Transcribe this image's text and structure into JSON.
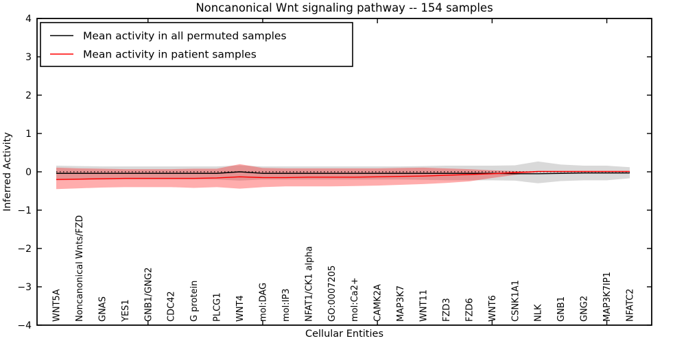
{
  "title": "Noncanonical Wnt signaling pathway -- 154 samples",
  "legend": {
    "items": [
      {
        "label": "Mean activity in all permuted samples",
        "color": "#000000"
      },
      {
        "label": "Mean activity in patient samples",
        "color": "#ff0000"
      }
    ]
  },
  "axes": {
    "ylabel": "Inferred Activity",
    "xlabel": "Cellular Entities",
    "ytick_labels": [
      "4",
      "3",
      "2",
      "1",
      "0",
      "−1",
      "−2",
      "−3",
      "−4"
    ],
    "ytick_values": [
      4,
      3,
      2,
      1,
      0,
      -1,
      -2,
      -3,
      -4
    ],
    "xtick_positions": [
      4,
      9,
      14,
      19,
      24
    ],
    "ylim": [
      -4,
      4
    ],
    "grid": false,
    "legend_position": "upper left"
  },
  "chart_data": {
    "type": "line",
    "title": "Noncanonical Wnt signaling pathway -- 154 samples",
    "xlabel": "Cellular Entities",
    "ylabel": "Inferred Activity",
    "ylim": [
      -4,
      4
    ],
    "categories": [
      "WNT5A",
      "Noncanonical Wnts/FZD",
      "GNAS",
      "YES1",
      "GNB1/GNG2",
      "CDC42",
      "G protein",
      "PLCG1",
      "WNT4",
      "mol:DAG",
      "mol:IP3",
      "NFAT1/CK1 alpha",
      "GO:0007205",
      "mol:Ca2+",
      "CAMK2A",
      "MAP3K7",
      "WNT11",
      "FZD3",
      "FZD6",
      "WNT6",
      "CSNK1A1",
      "NLK",
      "GNB1",
      "GNG2",
      "MAP3K7IP1",
      "NFATC2"
    ],
    "series": [
      {
        "name": "Mean activity in all permuted samples",
        "color": "#000000",
        "style": "solid",
        "width": 1.4,
        "values": [
          -0.04,
          -0.04,
          -0.04,
          -0.04,
          -0.04,
          -0.04,
          -0.04,
          -0.04,
          0.0,
          -0.04,
          -0.04,
          -0.04,
          -0.04,
          -0.04,
          -0.04,
          -0.04,
          -0.04,
          -0.04,
          -0.04,
          -0.04,
          -0.05,
          -0.05,
          -0.04,
          -0.03,
          -0.03,
          -0.03
        ]
      },
      {
        "name": "Median activity dotted reference",
        "color": "#000000",
        "style": "dotted",
        "width": 1.2,
        "values": [
          0.0,
          0.0,
          0.0,
          0.0,
          0.0,
          0.0,
          0.0,
          0.0,
          0.0,
          0.0,
          0.0,
          0.0,
          0.0,
          0.0,
          0.0,
          0.0,
          0.0,
          0.0,
          0.0,
          0.0,
          0.0,
          0.0,
          0.0,
          0.0,
          0.0,
          0.0
        ]
      },
      {
        "name": "Mean activity in patient samples",
        "color": "#ff0000",
        "style": "solid",
        "width": 1.4,
        "values": [
          -0.2,
          -0.19,
          -0.18,
          -0.17,
          -0.17,
          -0.17,
          -0.17,
          -0.16,
          -0.13,
          -0.15,
          -0.15,
          -0.14,
          -0.14,
          -0.14,
          -0.13,
          -0.12,
          -0.11,
          -0.09,
          -0.07,
          -0.05,
          -0.02,
          0.01,
          0.01,
          0.01,
          0.01,
          0.01
        ]
      }
    ],
    "bands": [
      {
        "name": "permuted-samples-spread",
        "color": "#777777",
        "opacity": 0.28,
        "upper": [
          0.16,
          0.15,
          0.14,
          0.14,
          0.14,
          0.14,
          0.14,
          0.14,
          0.17,
          0.14,
          0.14,
          0.14,
          0.14,
          0.14,
          0.14,
          0.14,
          0.15,
          0.16,
          0.16,
          0.16,
          0.17,
          0.27,
          0.19,
          0.16,
          0.16,
          0.12
        ],
        "lower": [
          -0.22,
          -0.21,
          -0.21,
          -0.2,
          -0.2,
          -0.2,
          -0.2,
          -0.2,
          -0.23,
          -0.2,
          -0.2,
          -0.2,
          -0.2,
          -0.2,
          -0.2,
          -0.2,
          -0.21,
          -0.22,
          -0.22,
          -0.22,
          -0.23,
          -0.3,
          -0.24,
          -0.22,
          -0.22,
          -0.17
        ]
      },
      {
        "name": "patient-samples-spread",
        "color": "#ff0000",
        "opacity": 0.32,
        "upper": [
          0.11,
          0.09,
          0.08,
          0.07,
          0.07,
          0.07,
          0.08,
          0.08,
          0.2,
          0.1,
          0.09,
          0.09,
          0.09,
          0.09,
          0.09,
          0.1,
          0.11,
          0.09,
          0.07,
          0.04,
          0.02,
          0.0,
          0.0,
          0.0,
          0.0,
          0.0
        ],
        "lower": [
          -0.45,
          -0.43,
          -0.41,
          -0.4,
          -0.4,
          -0.4,
          -0.42,
          -0.4,
          -0.44,
          -0.4,
          -0.38,
          -0.38,
          -0.38,
          -0.37,
          -0.36,
          -0.34,
          -0.32,
          -0.29,
          -0.25,
          -0.16,
          -0.08,
          -0.01,
          -0.01,
          -0.01,
          -0.01,
          -0.01
        ]
      }
    ]
  }
}
